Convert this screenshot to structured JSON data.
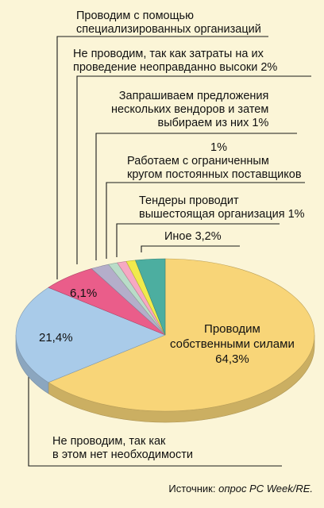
{
  "chart_data": {
    "type": "pie",
    "slices": [
      {
        "label": "Проводим собственными силами",
        "value_label": "64,3%",
        "value": 64.3,
        "color": "#f8d578"
      },
      {
        "label": "Не проводим, так как в этом нет необходимости",
        "value_label": "21,4%",
        "value": 21.4,
        "color": "#a9cbe9"
      },
      {
        "label": "Проводим с помощью специализированных организаций",
        "value_label": "6,1%",
        "value": 6.1,
        "color": "#ea5d8a"
      },
      {
        "label": "Не проводим, так как затраты на их проведение неоправданно высоки",
        "value_label": "2%",
        "value": 2,
        "color": "#b4aeca"
      },
      {
        "label": "Запрашиваем предложения нескольких вендоров и затем выбираем из них",
        "value_label": "1%",
        "value": 1,
        "color": "#b9dcc8"
      },
      {
        "label": "Работаем с ограниченным кругом постоянных поставщиков",
        "value_label": "1%",
        "value": 1,
        "color": "#f6a8c3"
      },
      {
        "label": "Тендеры проводит вышестоящая организация",
        "value_label": "1%",
        "value": 1,
        "color": "#f1ea4c"
      },
      {
        "label": "Иное",
        "value_label": "3,2%",
        "value": 3.2,
        "color": "#4caea0"
      }
    ]
  },
  "labels": {
    "spec_line1": "Проводим с помощью",
    "spec_line2": "специализированных организаций",
    "costs_line1": "Не проводим, так как затраты на их",
    "costs_line2": "проведение неоправданно высоки 2%",
    "vendors_line1": "Запрашиваем предложения",
    "vendors_line2": "нескольких вендоров и затем",
    "vendors_line3": "выбираем из них    1%",
    "suppliers_pct": "1%",
    "suppliers_line1": "Работаем с ограниченным",
    "suppliers_line2": "кругом постоянных поставщиков",
    "tender_line1": "Тендеры проводит",
    "tender_line2": "вышестоящая организация   1%",
    "other": "Иное  3,2%",
    "own_line1": "Проводим",
    "own_line2": "собственными силами",
    "own_pct": "64,3%",
    "noneed_pct": "21,4%",
    "spec_pct": "6,1%",
    "noneed_line1": "Не проводим, так как",
    "noneed_line2": "в этом нет необходимости"
  },
  "source": {
    "prefix": "Источник: ",
    "italic": "опрос PC Week/RE."
  }
}
